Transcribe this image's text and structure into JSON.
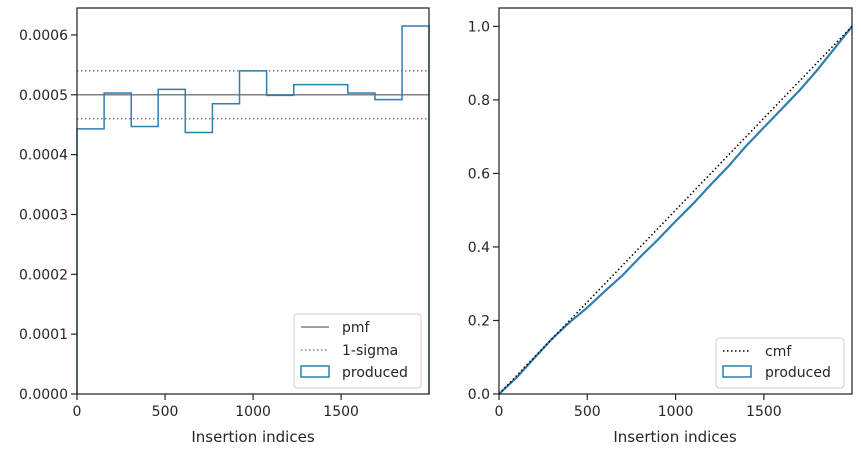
{
  "chart_data": [
    {
      "type": "step",
      "xlabel": "Insertion indices",
      "ylabel": "",
      "xlim": [
        0,
        1999
      ],
      "ylim": [
        0,
        0.000645
      ],
      "xticks": [
        {
          "value": 0,
          "label": "0"
        },
        {
          "value": 500,
          "label": "500"
        },
        {
          "value": 1000,
          "label": "1000"
        },
        {
          "value": 1500,
          "label": "1500"
        }
      ],
      "yticks": [
        {
          "value": 0,
          "label": "0.0000"
        },
        {
          "value": 0.0001,
          "label": "0.0001"
        },
        {
          "value": 0.0002,
          "label": "0.0002"
        },
        {
          "value": 0.0003,
          "label": "0.0003"
        },
        {
          "value": 0.0004,
          "label": "0.0004"
        },
        {
          "value": 0.0005,
          "label": "0.0005"
        },
        {
          "value": 0.0006,
          "label": "0.0006"
        }
      ],
      "pmf": {
        "name": "pmf",
        "value": 0.0005,
        "color": "#808080"
      },
      "sigma": {
        "name": "1-sigma",
        "values": [
          0.00046,
          0.00054
        ],
        "color": "#808080"
      },
      "produced": {
        "name": "produced",
        "color": "#2e7fb0",
        "bin_edges": [
          0,
          154,
          308,
          461,
          615,
          769,
          923,
          1077,
          1231,
          1384,
          1538,
          1692,
          1846,
          1999
        ],
        "values": [
          0.000443,
          0.000503,
          0.000447,
          0.000509,
          0.000437,
          0.000485,
          0.00054,
          0.000499,
          0.000517,
          0.000517,
          0.000503,
          0.000492,
          0.000615
        ]
      },
      "legend": {
        "position": "lower right",
        "entries": [
          "pmf",
          "1-sigma",
          "produced"
        ]
      }
    },
    {
      "type": "line",
      "xlabel": "Insertion indices",
      "ylabel": "",
      "xlim": [
        0,
        1999
      ],
      "ylim": [
        0,
        1.05
      ],
      "xticks": [
        {
          "value": 0,
          "label": "0"
        },
        {
          "value": 500,
          "label": "500"
        },
        {
          "value": 1000,
          "label": "1000"
        },
        {
          "value": 1500,
          "label": "1500"
        }
      ],
      "yticks": [
        {
          "value": 0,
          "label": "0.0"
        },
        {
          "value": 0.2,
          "label": "0.2"
        },
        {
          "value": 0.4,
          "label": "0.4"
        },
        {
          "value": 0.6,
          "label": "0.6"
        },
        {
          "value": 0.8,
          "label": "0.8"
        },
        {
          "value": 1.0,
          "label": "1.0"
        }
      ],
      "cmf": {
        "name": "cmf",
        "x": [
          0,
          1999
        ],
        "y": [
          0,
          1.0
        ],
        "color": "#000000"
      },
      "produced": {
        "name": "produced",
        "color": "#2e7fb0",
        "x": [
          0,
          100,
          200,
          300,
          400,
          500,
          600,
          700,
          800,
          900,
          1000,
          1100,
          1200,
          1300,
          1400,
          1500,
          1600,
          1700,
          1800,
          1900,
          1999
        ],
        "y": [
          0,
          0.045,
          0.098,
          0.15,
          0.195,
          0.235,
          0.28,
          0.323,
          0.373,
          0.42,
          0.47,
          0.518,
          0.57,
          0.62,
          0.675,
          0.725,
          0.775,
          0.825,
          0.88,
          0.94,
          1.0
        ]
      },
      "legend": {
        "position": "lower right",
        "entries": [
          "cmf",
          "produced"
        ]
      }
    }
  ]
}
